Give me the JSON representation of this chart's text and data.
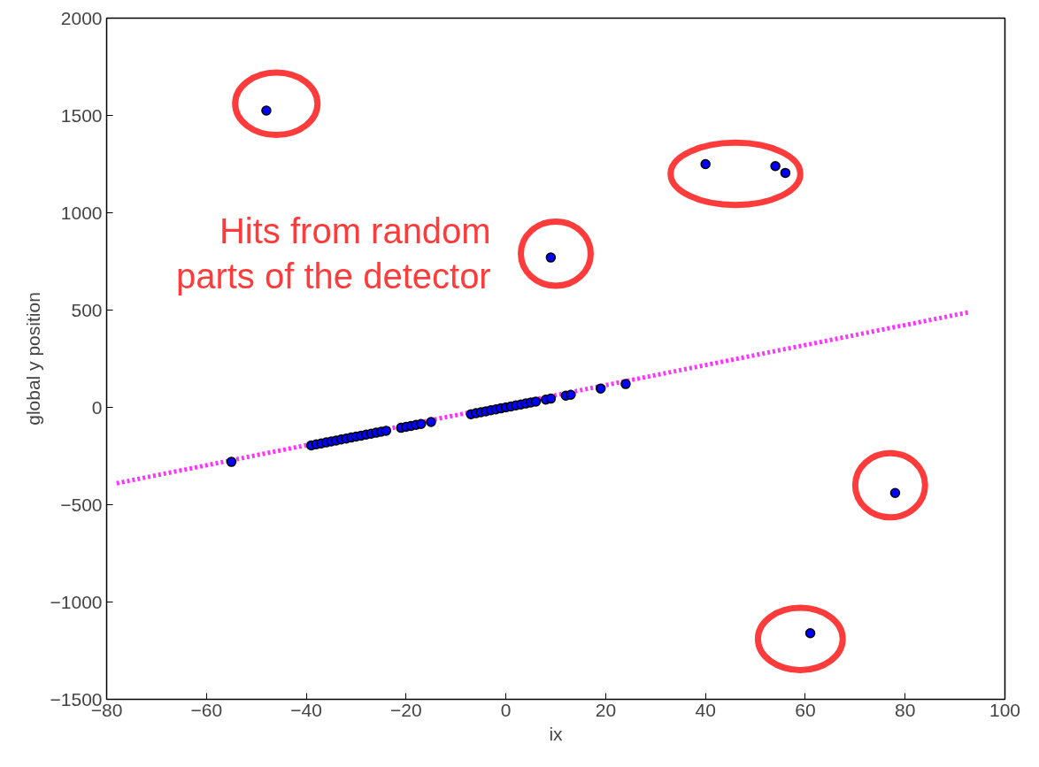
{
  "chart_data": {
    "type": "scatter",
    "xlabel": "ix",
    "ylabel": "global y position",
    "xlim": [
      -80,
      100
    ],
    "ylim": [
      -1500,
      2000
    ],
    "xticks": [
      {
        "value": -80,
        "label": "−80"
      },
      {
        "value": -60,
        "label": "−60"
      },
      {
        "value": -40,
        "label": "−40"
      },
      {
        "value": -20,
        "label": "−20"
      },
      0,
      20,
      40,
      60,
      80,
      100
    ],
    "yticks": [
      {
        "value": -1500,
        "label": "−1500"
      },
      {
        "value": -1000,
        "label": "−1000"
      },
      {
        "value": -500,
        "label": "−500"
      },
      0,
      500,
      1000,
      1500,
      2000
    ],
    "grid": false,
    "marker": "circle",
    "annotations": [
      "Hits from random parts of the detector"
    ],
    "series": [
      {
        "type": "line",
        "color": "#ff33ff",
        "line_style": "dotted",
        "marker": "none",
        "x": [
          -78,
          93
        ],
        "values": [
          -390,
          490
        ]
      },
      {
        "color": "#0000ff",
        "x": [
          -55,
          -39,
          -38,
          -37,
          -36,
          -35,
          -34,
          -33,
          -32,
          -31,
          -30,
          -29,
          -28,
          -27,
          -26,
          -25,
          -24,
          -21,
          -20,
          -19,
          -18,
          -17,
          -15,
          -7,
          -6,
          -5,
          -4,
          -3,
          -2,
          -1,
          0,
          1,
          2,
          3,
          4,
          5,
          6,
          8,
          9,
          12,
          13,
          19,
          24,
          -48,
          40,
          54,
          56,
          9,
          78,
          61
        ],
        "values": [
          -280,
          -195,
          -190,
          -185,
          -180,
          -175,
          -170,
          -165,
          -160,
          -155,
          -150,
          -145,
          -140,
          -135,
          -130,
          -125,
          -120,
          -105,
          -100,
          -95,
          -90,
          -85,
          -75,
          -35,
          -30,
          -25,
          -20,
          -15,
          -10,
          -5,
          0,
          5,
          10,
          15,
          20,
          25,
          30,
          40,
          45,
          60,
          65,
          97,
          120,
          1525,
          1250,
          1240,
          1205,
          770,
          -440,
          -1160
        ]
      }
    ]
  }
}
